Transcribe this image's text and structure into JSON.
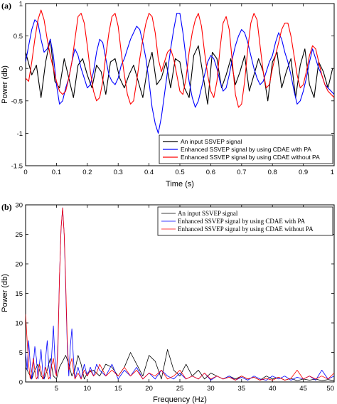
{
  "chart_data": [
    {
      "panel": "(a)",
      "type": "line",
      "xlabel": "Time (s)",
      "ylabel": "Power (db)",
      "xlim": [
        0,
        1
      ],
      "ylim": [
        -1.5,
        1
      ],
      "xticks": [
        "0",
        "0.1",
        "0.2",
        "0.3",
        "0.4",
        "0.5",
        "0.6",
        "0.7",
        "0.8",
        "0.9",
        "1"
      ],
      "yticks": [
        "-1.5",
        "-1",
        "-0.5",
        "0",
        "0.5",
        "1"
      ],
      "legend_position": "bottom-right",
      "series": [
        {
          "name": "An input SSVEP signal",
          "color": "#000000",
          "x": [
            0.0,
            0.02,
            0.035,
            0.05,
            0.065,
            0.08,
            0.095,
            0.11,
            0.125,
            0.14,
            0.155,
            0.17,
            0.185,
            0.2,
            0.215,
            0.23,
            0.245,
            0.26,
            0.275,
            0.29,
            0.305,
            0.32,
            0.335,
            0.35,
            0.365,
            0.38,
            0.395,
            0.41,
            0.425,
            0.44,
            0.455,
            0.47,
            0.485,
            0.5,
            0.515,
            0.53,
            0.545,
            0.56,
            0.575,
            0.59,
            0.605,
            0.62,
            0.635,
            0.65,
            0.665,
            0.68,
            0.695,
            0.71,
            0.725,
            0.74,
            0.755,
            0.77,
            0.785,
            0.8,
            0.815,
            0.83,
            0.845,
            0.86,
            0.875,
            0.89,
            0.905,
            0.92,
            0.935,
            0.95,
            0.965,
            0.98,
            0.995
          ],
          "y": [
            0.25,
            -0.1,
            0.05,
            -0.45,
            0.1,
            0.45,
            -0.2,
            -0.3,
            0.15,
            -0.15,
            -0.45,
            0.05,
            0.15,
            -0.1,
            -0.3,
            0.05,
            -0.05,
            -0.4,
            0.1,
            0.15,
            -0.15,
            -0.3,
            -0.1,
            0.05,
            -0.2,
            -0.45,
            0.0,
            0.25,
            -0.25,
            -0.15,
            0.1,
            -0.3,
            0.15,
            0.1,
            -0.3,
            -0.45,
            0.2,
            0.35,
            -0.1,
            -0.55,
            0.25,
            0.15,
            -0.3,
            -0.1,
            0.15,
            -0.25,
            -0.05,
            0.2,
            -0.35,
            -0.1,
            0.15,
            -0.05,
            -0.5,
            0.1,
            0.25,
            -0.3,
            -0.05,
            0.15,
            -0.45,
            0.05,
            0.3,
            -0.25,
            -0.45,
            0.1,
            -0.05,
            -0.3,
            0.0
          ]
        },
        {
          "name": "Enhanced SSVEP signal by using CDAE with PA",
          "color": "#0000ff",
          "x": [
            0.0,
            0.01,
            0.02,
            0.03,
            0.04,
            0.05,
            0.06,
            0.07,
            0.08,
            0.09,
            0.1,
            0.11,
            0.12,
            0.13,
            0.14,
            0.15,
            0.16,
            0.17,
            0.18,
            0.19,
            0.2,
            0.21,
            0.22,
            0.23,
            0.24,
            0.25,
            0.26,
            0.27,
            0.28,
            0.29,
            0.3,
            0.31,
            0.32,
            0.33,
            0.34,
            0.35,
            0.36,
            0.37,
            0.38,
            0.39,
            0.4,
            0.41,
            0.42,
            0.43,
            0.44,
            0.45,
            0.46,
            0.47,
            0.48,
            0.49,
            0.5,
            0.51,
            0.52,
            0.53,
            0.54,
            0.55,
            0.56,
            0.57,
            0.58,
            0.59,
            0.6,
            0.61,
            0.62,
            0.63,
            0.64,
            0.65,
            0.66,
            0.67,
            0.68,
            0.69,
            0.7,
            0.71,
            0.72,
            0.73,
            0.74,
            0.75,
            0.76,
            0.77,
            0.78,
            0.79,
            0.8,
            0.81,
            0.82,
            0.83,
            0.84,
            0.85,
            0.86,
            0.87,
            0.88,
            0.89,
            0.9,
            0.91,
            0.92,
            0.93,
            0.94,
            0.95,
            0.96,
            0.97,
            0.98,
            0.99,
            1.0
          ],
          "y": [
            0.1,
            0.35,
            0.6,
            0.75,
            0.7,
            0.45,
            0.25,
            0.3,
            0.45,
            0.2,
            -0.25,
            -0.55,
            -0.5,
            -0.3,
            -0.15,
            0.1,
            0.3,
            0.2,
            0.0,
            -0.15,
            -0.3,
            -0.25,
            -0.05,
            0.25,
            0.45,
            0.4,
            0.15,
            -0.1,
            -0.2,
            -0.25,
            -0.15,
            0.05,
            0.15,
            0.3,
            0.45,
            0.55,
            0.65,
            0.6,
            0.4,
            0.15,
            -0.2,
            -0.6,
            -0.85,
            -1.0,
            -0.75,
            -0.4,
            -0.05,
            0.3,
            0.6,
            0.85,
            0.85,
            0.55,
            0.15,
            -0.2,
            -0.45,
            -0.6,
            -0.5,
            -0.3,
            -0.1,
            0.1,
            0.2,
            0.15,
            0.0,
            -0.2,
            -0.35,
            -0.3,
            -0.1,
            0.15,
            0.35,
            0.5,
            0.6,
            0.55,
            0.4,
            0.2,
            0.0,
            -0.15,
            -0.25,
            -0.2,
            -0.05,
            0.1,
            0.2,
            0.4,
            0.55,
            0.45,
            0.25,
            0.1,
            -0.1,
            -0.35,
            -0.55,
            -0.5,
            -0.35,
            -0.15,
            0.1,
            0.3,
            0.15,
            0.0,
            -0.1,
            -0.25,
            -0.3,
            -0.35,
            -0.4
          ]
        },
        {
          "name": "Enhanced SSVEP signal by using CDAE without PA",
          "color": "#ff0000",
          "x": [
            0.0,
            0.01,
            0.02,
            0.03,
            0.04,
            0.05,
            0.06,
            0.07,
            0.08,
            0.09,
            0.1,
            0.11,
            0.12,
            0.13,
            0.14,
            0.15,
            0.16,
            0.17,
            0.18,
            0.19,
            0.2,
            0.21,
            0.22,
            0.23,
            0.24,
            0.25,
            0.26,
            0.27,
            0.28,
            0.29,
            0.3,
            0.31,
            0.32,
            0.33,
            0.34,
            0.35,
            0.36,
            0.37,
            0.38,
            0.39,
            0.4,
            0.41,
            0.42,
            0.43,
            0.44,
            0.45,
            0.46,
            0.47,
            0.48,
            0.49,
            0.5,
            0.51,
            0.52,
            0.53,
            0.54,
            0.55,
            0.56,
            0.57,
            0.58,
            0.59,
            0.6,
            0.61,
            0.62,
            0.63,
            0.64,
            0.65,
            0.66,
            0.67,
            0.68,
            0.69,
            0.7,
            0.71,
            0.72,
            0.73,
            0.74,
            0.75,
            0.76,
            0.77,
            0.78,
            0.79,
            0.8,
            0.81,
            0.82,
            0.83,
            0.84,
            0.85,
            0.86,
            0.87,
            0.88,
            0.89,
            0.9,
            0.91,
            0.92,
            0.93,
            0.94,
            0.95,
            0.96,
            0.97,
            0.98,
            0.99,
            1.0
          ],
          "y": [
            -0.15,
            -0.2,
            0.1,
            0.45,
            0.75,
            0.9,
            0.75,
            0.45,
            0.2,
            0.0,
            -0.2,
            -0.35,
            -0.4,
            -0.35,
            -0.15,
            0.1,
            0.45,
            0.8,
            0.85,
            0.7,
            0.35,
            -0.05,
            -0.35,
            -0.5,
            -0.45,
            -0.2,
            0.2,
            0.55,
            0.8,
            0.85,
            0.65,
            0.25,
            -0.1,
            -0.4,
            -0.55,
            -0.5,
            -0.2,
            0.15,
            0.45,
            0.7,
            0.85,
            0.8,
            0.55,
            0.15,
            -0.05,
            0.1,
            0.25,
            0.3,
            0.15,
            -0.1,
            -0.35,
            -0.4,
            -0.15,
            0.25,
            0.55,
            0.75,
            0.85,
            0.65,
            0.25,
            -0.1,
            -0.35,
            -0.45,
            -0.2,
            0.3,
            0.7,
            0.8,
            0.6,
            0.1,
            -0.4,
            -0.6,
            -0.55,
            -0.2,
            0.3,
            0.7,
            0.85,
            0.75,
            0.35,
            -0.05,
            -0.3,
            -0.25,
            0.0,
            0.2,
            0.4,
            0.6,
            0.7,
            0.7,
            0.5,
            0.2,
            -0.1,
            -0.3,
            -0.25,
            -0.05,
            0.2,
            0.35,
            0.3,
            0.1,
            -0.1,
            -0.25,
            -0.35,
            -0.4,
            -0.45
          ]
        }
      ]
    },
    {
      "panel": "(b)",
      "type": "line",
      "xlabel": "Frequency (Hz)",
      "ylabel": "Power (db)",
      "xlim": [
        0,
        50
      ],
      "ylim": [
        0,
        30
      ],
      "xticks": [
        "5",
        "10",
        "15",
        "20",
        "25",
        "30",
        "35",
        "40",
        "45",
        "50"
      ],
      "yticks": [
        "0",
        "5",
        "10",
        "15",
        "20",
        "25",
        "30"
      ],
      "legend_position": "top-right",
      "series": [
        {
          "name": "An input SSVEP signal",
          "color": "#000000",
          "x": [
            0,
            0.5,
            1,
            1.5,
            2,
            2.5,
            3,
            3.5,
            4,
            4.5,
            5,
            5.5,
            6,
            6.5,
            7,
            7.5,
            8,
            8.5,
            9,
            9.5,
            10,
            11,
            12,
            13,
            14,
            15,
            16,
            17,
            18,
            19,
            20,
            21,
            22,
            23,
            24,
            25,
            26,
            27,
            28,
            29,
            30,
            31,
            32,
            33,
            34,
            35,
            36,
            37,
            38,
            39,
            40,
            41,
            42,
            43,
            44,
            45,
            46,
            47,
            48,
            49,
            50
          ],
          "y": [
            2.5,
            1.5,
            0.5,
            2,
            3,
            1,
            0.5,
            2,
            4,
            1,
            0.5,
            2.5,
            3.5,
            4.5,
            3,
            1,
            2,
            4.5,
            3,
            0.5,
            1.5,
            2,
            1,
            3,
            2.5,
            1,
            2.5,
            5,
            3,
            1,
            4.5,
            3.5,
            0.5,
            5.5,
            2,
            1,
            3,
            1,
            2,
            0.5,
            1.5,
            1,
            0.5,
            1,
            0.5,
            1,
            0.5,
            0.8,
            0.3,
            1,
            0.5,
            0.8,
            0.3,
            0.6,
            0.2,
            0.5,
            0.3,
            0.5,
            0.2,
            0.4,
            0.2
          ]
        },
        {
          "name": "Enhanced SSVEP signal by using CDAE with PA",
          "color": "#0000ff",
          "x": [
            0,
            0.25,
            0.5,
            0.75,
            1,
            1.25,
            1.5,
            1.75,
            2,
            2.25,
            2.5,
            2.75,
            3,
            3.25,
            3.5,
            3.75,
            4,
            4.25,
            4.5,
            4.75,
            5,
            5.25,
            5.5,
            5.75,
            6,
            6.25,
            6.5,
            6.75,
            7,
            7.25,
            7.5,
            7.75,
            8,
            8.5,
            9,
            9.5,
            10,
            10.5,
            11,
            11.5,
            12,
            13,
            14,
            15,
            16,
            17,
            18,
            19,
            20,
            21,
            22,
            23,
            24,
            25,
            26,
            27,
            28,
            29,
            30,
            31,
            32,
            33,
            34,
            35,
            36,
            37,
            38,
            39,
            40,
            41,
            42,
            43,
            44,
            45,
            46,
            47,
            48,
            49,
            50
          ],
          "y": [
            5,
            2,
            7,
            3,
            0.5,
            3,
            6,
            4,
            0.5,
            3,
            5.5,
            2,
            0.5,
            4,
            7,
            3,
            0.5,
            5,
            9.5,
            4,
            1,
            7,
            18,
            26,
            29.5,
            25,
            16,
            6,
            1,
            6,
            9,
            4,
            0.5,
            2.5,
            0.5,
            3,
            1,
            2.5,
            1,
            3,
            2,
            1,
            3,
            0.5,
            2,
            1,
            2.5,
            0.5,
            1.5,
            0.5,
            2,
            1,
            0.5,
            1.5,
            0.5,
            1,
            0.5,
            1.5,
            0.3,
            1,
            0.5,
            1,
            0.3,
            0.8,
            0.3,
            1,
            0.5,
            0.3,
            1,
            0.5,
            1,
            0.3,
            0.8,
            0.5,
            1,
            0.3,
            2,
            0.5,
            1
          ]
        },
        {
          "name": "Enhanced SSVEP signal by using CDAE without PA",
          "color": "#ff0000",
          "x": [
            0,
            0.25,
            0.5,
            0.75,
            1,
            1.25,
            1.5,
            1.75,
            2,
            2.25,
            2.5,
            2.75,
            3,
            3.25,
            3.5,
            3.75,
            4,
            4.25,
            4.5,
            4.75,
            5,
            5.25,
            5.5,
            5.75,
            6,
            6.25,
            6.5,
            6.75,
            7,
            7.25,
            7.5,
            7.75,
            8,
            8.5,
            9,
            9.5,
            10,
            10.5,
            11,
            11.5,
            12,
            13,
            14,
            15,
            16,
            17,
            18,
            19,
            20,
            21,
            22,
            23,
            24,
            25,
            26,
            27,
            28,
            29,
            30,
            31,
            32,
            33,
            34,
            35,
            36,
            37,
            38,
            39,
            40,
            41,
            42,
            43,
            44,
            45,
            46,
            47,
            48,
            49,
            50
          ],
          "y": [
            11.5,
            7,
            3,
            0.5,
            2,
            4,
            2,
            0.5,
            1,
            3,
            2,
            0.5,
            1,
            2.5,
            1.5,
            0.5,
            1,
            3,
            4,
            2,
            1,
            6,
            18,
            26,
            29.5,
            25,
            17,
            7,
            2,
            3,
            4,
            2,
            0.5,
            1.5,
            0.5,
            2,
            1,
            2,
            1,
            1.5,
            3,
            1,
            2,
            1,
            2.5,
            1,
            2,
            0.5,
            1.5,
            1,
            2,
            0.5,
            1,
            2,
            0.5,
            1,
            0.5,
            1.5,
            0.5,
            1,
            0.5,
            0.8,
            0.3,
            1,
            0.5,
            0.8,
            0.3,
            0.6,
            0.3,
            0.8,
            0.3,
            0.6,
            2,
            0.5,
            1,
            0.5,
            1,
            0.5,
            1.5
          ]
        }
      ]
    }
  ]
}
